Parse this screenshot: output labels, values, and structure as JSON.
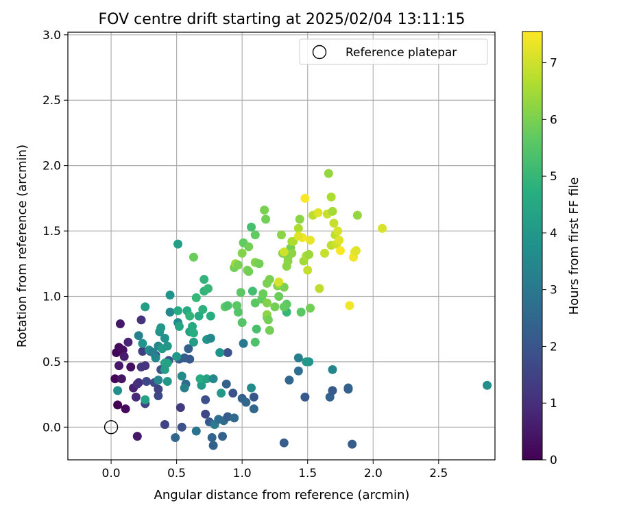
{
  "chart_data": {
    "type": "scatter",
    "title": "FOV centre drift starting at 2025/02/04 13:11:15",
    "xlabel": "Angular distance from reference (arcmin)",
    "ylabel": "Rotation from reference (arcmin)",
    "xlim": [
      -0.33,
      2.93
    ],
    "ylim": [
      -0.25,
      3.02
    ],
    "xticks": [
      0.0,
      0.5,
      1.0,
      1.5,
      2.0,
      2.5
    ],
    "xtick_labels": [
      "0.0",
      "0.5",
      "1.0",
      "1.5",
      "2.0",
      "2.5"
    ],
    "yticks": [
      0.0,
      0.5,
      1.0,
      1.5,
      2.0,
      2.5,
      3.0
    ],
    "ytick_labels": [
      "0.0",
      "0.5",
      "1.0",
      "1.5",
      "2.0",
      "2.5",
      "3.0"
    ],
    "grid": true,
    "legend": {
      "position": "top-right",
      "entries": [
        "Reference platepar"
      ]
    },
    "reference_point": {
      "x": 0.0,
      "y": 0.0
    },
    "colorbar": {
      "label": "Hours from first FF file",
      "range": [
        0,
        7.55
      ],
      "ticks": [
        0,
        1,
        2,
        3,
        4,
        5,
        6,
        7
      ],
      "tick_labels": [
        "0",
        "1",
        "2",
        "3",
        "4",
        "5",
        "6",
        "7"
      ],
      "colormap": "viridis"
    },
    "points": [
      [
        0.04,
        0.57,
        0.1
      ],
      [
        0.06,
        0.61,
        0.2
      ],
      [
        0.09,
        0.59,
        0.3
      ],
      [
        0.07,
        0.79,
        0.5
      ],
      [
        0.03,
        0.37,
        0.1
      ],
      [
        0.05,
        0.17,
        0.0
      ],
      [
        0.11,
        0.14,
        0.2
      ],
      [
        0.08,
        0.37,
        0.4
      ],
      [
        0.1,
        0.54,
        0.6
      ],
      [
        0.06,
        0.47,
        0.5
      ],
      [
        0.13,
        0.65,
        0.8
      ],
      [
        0.15,
        0.46,
        0.3
      ],
      [
        0.2,
        -0.07,
        0.5
      ],
      [
        0.17,
        0.3,
        0.7
      ],
      [
        0.19,
        0.23,
        0.9
      ],
      [
        0.21,
        0.34,
        1.0
      ],
      [
        0.23,
        0.46,
        1.2
      ],
      [
        0.24,
        0.58,
        1.4
      ],
      [
        0.23,
        0.82,
        1.1
      ],
      [
        0.26,
        0.47,
        1.1
      ],
      [
        0.26,
        0.18,
        1.5
      ],
      [
        0.27,
        0.35,
        1.6
      ],
      [
        0.2,
        0.33,
        1.0
      ],
      [
        0.3,
        0.58,
        1.7
      ],
      [
        0.34,
        0.55,
        1.9
      ],
      [
        0.36,
        0.24,
        1.6
      ],
      [
        0.33,
        0.34,
        1.7
      ],
      [
        0.36,
        0.29,
        1.5
      ],
      [
        0.38,
        0.44,
        1.8
      ],
      [
        0.41,
        0.02,
        1.5
      ],
      [
        0.44,
        0.51,
        1.9
      ],
      [
        0.45,
        0.88,
        3.5
      ],
      [
        0.45,
        1.01,
        3.8
      ],
      [
        0.52,
        0.52,
        2.2
      ],
      [
        0.51,
        0.8,
        3.6
      ],
      [
        0.53,
        0.15,
        1.3
      ],
      [
        0.54,
        0.0,
        1.9
      ],
      [
        0.49,
        -0.08,
        2.5
      ],
      [
        0.56,
        0.53,
        2.2
      ],
      [
        0.57,
        0.33,
        2.6
      ],
      [
        0.59,
        0.6,
        2.3
      ],
      [
        0.6,
        0.52,
        2.1
      ],
      [
        0.65,
        -0.03,
        2.9
      ],
      [
        0.72,
        0.21,
        1.8
      ],
      [
        0.72,
        0.1,
        1.6
      ],
      [
        0.75,
        0.04,
        2.1
      ],
      [
        0.79,
        0.02,
        3.1
      ],
      [
        0.78,
        -0.14,
        2.3
      ],
      [
        0.77,
        -0.08,
        2.4
      ],
      [
        0.82,
        0.06,
        2.7
      ],
      [
        0.85,
        -0.07,
        2.3
      ],
      [
        0.86,
        0.05,
        2.6
      ],
      [
        0.89,
        0.08,
        2.2
      ],
      [
        0.94,
        0.07,
        2.6
      ],
      [
        0.88,
        0.33,
        2.3
      ],
      [
        0.89,
        0.57,
        1.9
      ],
      [
        0.93,
        0.26,
        1.9
      ],
      [
        1.0,
        0.22,
        2.3
      ],
      [
        1.03,
        0.19,
        2.5
      ],
      [
        1.07,
        0.3,
        3.6
      ],
      [
        1.09,
        0.23,
        2.0
      ],
      [
        1.09,
        0.14,
        2.5
      ],
      [
        1.01,
        0.64,
        3.0
      ],
      [
        1.32,
        -0.12,
        2.2
      ],
      [
        1.36,
        0.36,
        2.5
      ],
      [
        1.43,
        0.43,
        2.7
      ],
      [
        1.43,
        0.53,
        3.2
      ],
      [
        1.48,
        0.23,
        2.1
      ],
      [
        1.51,
        0.5,
        3.8
      ],
      [
        1.67,
        0.23,
        2.4
      ],
      [
        1.69,
        0.28,
        2.1
      ],
      [
        1.69,
        0.44,
        3.4
      ],
      [
        1.81,
        0.3,
        2.5
      ],
      [
        1.81,
        0.29,
        2.4
      ],
      [
        1.84,
        -0.13,
        2.2
      ],
      [
        2.87,
        0.32,
        3.7
      ],
      [
        0.21,
        0.7,
        3.3
      ],
      [
        0.24,
        0.64,
        3.8
      ],
      [
        0.29,
        0.59,
        3.6
      ],
      [
        0.26,
        0.92,
        4.2
      ],
      [
        0.26,
        0.21,
        4.3
      ],
      [
        0.05,
        0.28,
        3.7
      ],
      [
        0.32,
        0.57,
        3.2
      ],
      [
        0.34,
        0.53,
        3.4
      ],
      [
        0.36,
        0.62,
        3.5
      ],
      [
        0.37,
        0.73,
        3.9
      ],
      [
        0.38,
        0.76,
        4.0
      ],
      [
        0.36,
        0.36,
        3.5
      ],
      [
        0.39,
        0.6,
        4.1
      ],
      [
        0.41,
        0.49,
        4.4
      ],
      [
        0.41,
        0.44,
        4.2
      ],
      [
        0.43,
        0.35,
        4.0
      ],
      [
        0.43,
        0.49,
        4.3
      ],
      [
        0.43,
        0.62,
        4.0
      ],
      [
        0.41,
        0.68,
        3.8
      ],
      [
        0.51,
        0.89,
        4.6
      ],
      [
        0.51,
        1.4,
        4.2
      ],
      [
        0.52,
        0.77,
        4.4
      ],
      [
        0.5,
        0.54,
        4.0
      ],
      [
        0.54,
        0.39,
        3.6
      ],
      [
        0.56,
        0.3,
        3.3
      ],
      [
        0.58,
        0.89,
        4.6
      ],
      [
        0.6,
        0.73,
        4.3
      ],
      [
        0.6,
        0.85,
        4.9
      ],
      [
        0.62,
        0.77,
        4.6
      ],
      [
        0.63,
        0.65,
        4.2
      ],
      [
        0.63,
        0.72,
        4.7
      ],
      [
        0.65,
        0.99,
        5.0
      ],
      [
        0.67,
        0.85,
        4.6
      ],
      [
        0.69,
        0.32,
        4.1
      ],
      [
        0.68,
        0.37,
        4.6
      ],
      [
        0.7,
        0.9,
        4.8
      ],
      [
        0.71,
        1.04,
        4.9
      ],
      [
        0.71,
        1.13,
        4.9
      ],
      [
        0.73,
        0.67,
        3.9
      ],
      [
        0.73,
        0.37,
        4.3
      ],
      [
        0.74,
        1.06,
        5.0
      ],
      [
        0.76,
        0.68,
        3.5
      ],
      [
        0.76,
        0.85,
        4.7
      ],
      [
        0.78,
        0.37,
        3.5
      ],
      [
        0.83,
        0.57,
        3.8
      ],
      [
        0.84,
        0.26,
        4.0
      ],
      [
        0.87,
        0.92,
        5.6
      ],
      [
        0.89,
        0.93,
        5.4
      ],
      [
        0.96,
        0.93,
        5.6
      ],
      [
        0.97,
        0.88,
        5.5
      ],
      [
        0.99,
        1.03,
        5.6
      ],
      [
        1.0,
        0.8,
        5.5
      ],
      [
        1.07,
        1.53,
        5.3
      ],
      [
        1.08,
        1.04,
        5.2
      ],
      [
        1.1,
        0.65,
        5.4
      ],
      [
        1.1,
        0.95,
        5.6
      ],
      [
        1.11,
        0.75,
        5.3
      ],
      [
        0.63,
        1.3,
        5.8
      ],
      [
        1.49,
        0.5,
        4.0
      ],
      [
        1.45,
        0.88,
        5.6
      ],
      [
        1.52,
        0.91,
        5.9
      ],
      [
        1.59,
        1.06,
        6.8
      ],
      [
        1.34,
        0.88,
        5.0
      ],
      [
        1.34,
        0.94,
        5.6
      ],
      [
        0.94,
        1.22,
        5.9
      ],
      [
        0.95,
        1.25,
        6.4
      ],
      [
        0.97,
        1.24,
        6.0
      ],
      [
        1.0,
        1.33,
        6.1
      ],
      [
        1.01,
        1.41,
        5.7
      ],
      [
        1.04,
        1.2,
        6.0
      ],
      [
        1.05,
        1.19,
        5.9
      ],
      [
        1.1,
        1.26,
        6.1
      ],
      [
        1.1,
        1.47,
        5.7
      ],
      [
        1.13,
        1.25,
        5.9
      ],
      [
        1.15,
        0.98,
        5.7
      ],
      [
        1.16,
        1.02,
        5.8
      ],
      [
        1.17,
        1.66,
        6.0
      ],
      [
        1.18,
        1.59,
        5.9
      ],
      [
        1.19,
        0.84,
        5.9
      ],
      [
        1.19,
        0.95,
        6.1
      ],
      [
        1.19,
        0.86,
        6.2
      ],
      [
        1.19,
        1.1,
        6.0
      ],
      [
        1.2,
        0.82,
        5.9
      ],
      [
        1.21,
        1.13,
        6.0
      ],
      [
        1.21,
        0.74,
        5.9
      ],
      [
        1.25,
        0.92,
        5.9
      ],
      [
        1.27,
        1.08,
        6.1
      ],
      [
        1.28,
        1.1,
        6.4
      ],
      [
        1.28,
        1.0,
        5.8
      ],
      [
        1.3,
        1.47,
        6.2
      ],
      [
        1.31,
        1.33,
        6.1
      ],
      [
        1.32,
        1.07,
        6.0
      ],
      [
        1.32,
        0.92,
        5.7
      ],
      [
        1.34,
        1.23,
        6.2
      ],
      [
        1.35,
        1.3,
        6.1
      ],
      [
        1.35,
        1.27,
        6.2
      ],
      [
        1.37,
        1.37,
        5.9
      ],
      [
        1.38,
        1.42,
        6.5
      ],
      [
        1.38,
        1.33,
        6.2
      ],
      [
        1.39,
        1.42,
        6.6
      ],
      [
        1.43,
        1.52,
        6.6
      ],
      [
        1.44,
        1.59,
        6.2
      ],
      [
        1.47,
        1.27,
        6.5
      ],
      [
        1.49,
        1.31,
        6.6
      ],
      [
        1.5,
        1.2,
        6.9
      ],
      [
        1.51,
        1.32,
        6.4
      ],
      [
        1.52,
        1.43,
        7.3
      ],
      [
        1.54,
        1.62,
        6.8
      ],
      [
        1.58,
        1.64,
        7.2
      ],
      [
        1.63,
        1.33,
        6.9
      ],
      [
        1.65,
        1.63,
        6.9
      ],
      [
        1.66,
        1.94,
        6.3
      ],
      [
        1.68,
        1.76,
        6.6
      ],
      [
        1.68,
        1.39,
        6.8
      ],
      [
        1.69,
        1.65,
        6.5
      ],
      [
        1.7,
        1.56,
        6.9
      ],
      [
        1.71,
        1.47,
        6.8
      ],
      [
        1.72,
        1.4,
        7.0
      ],
      [
        1.73,
        1.5,
        7.1
      ],
      [
        1.74,
        1.43,
        7.2
      ],
      [
        1.75,
        1.35,
        7.5
      ],
      [
        1.82,
        0.93,
        7.4
      ],
      [
        1.85,
        1.3,
        7.4
      ],
      [
        1.86,
        1.34,
        7.3
      ],
      [
        1.87,
        1.35,
        7.2
      ],
      [
        1.88,
        1.62,
        6.3
      ],
      [
        2.07,
        1.52,
        7.1
      ],
      [
        1.48,
        1.75,
        7.5
      ],
      [
        1.46,
        1.45,
        7.4
      ],
      [
        1.43,
        1.46,
        7.2
      ],
      [
        1.32,
        1.34,
        7.0
      ],
      [
        1.28,
        1.11,
        7.1
      ],
      [
        1.05,
        1.38,
        5.9
      ]
    ]
  }
}
